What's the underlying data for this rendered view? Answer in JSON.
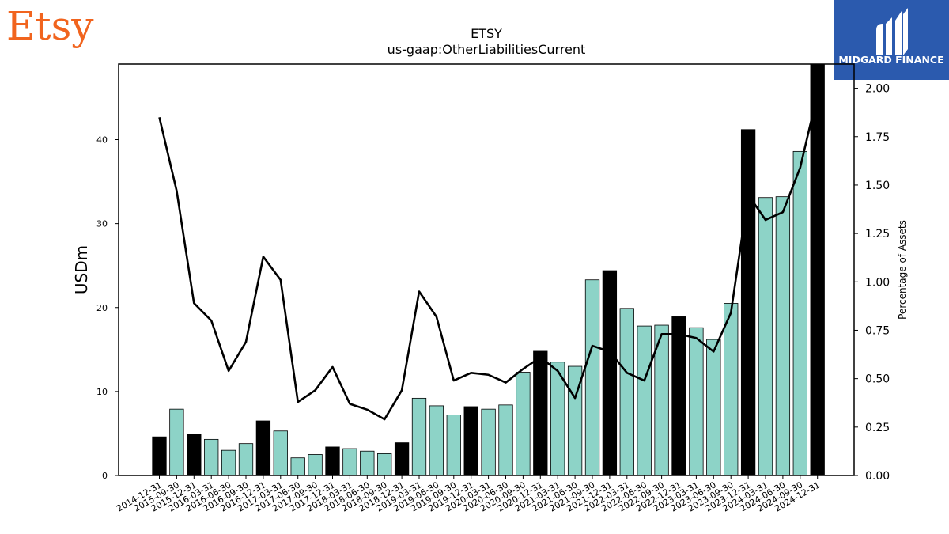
{
  "brand": {
    "left_logo_text": "Etsy",
    "left_logo_color": "#F1641E",
    "right_logo_text": "MIDGARD FINANCE",
    "right_logo_bg": "#2B5AAE"
  },
  "chart_data": {
    "type": "bar",
    "title": "ETSY",
    "subtitle": "us-gaap:OtherLiabilitiesCurrent",
    "ylabel": "USDm",
    "y2label": "Percentage of Assets",
    "ylim": [
      0,
      49
    ],
    "y2lim": [
      0,
      2.125
    ],
    "yticks": [
      0,
      10,
      20,
      30,
      40
    ],
    "y2ticks": [
      "0.00",
      "0.25",
      "0.50",
      "0.75",
      "1.00",
      "1.25",
      "1.50",
      "1.75",
      "2.00"
    ],
    "grid": false,
    "colors": {
      "annual_bar": "#000000",
      "quarter_bar": "#8DD3C7",
      "line": "#000000"
    },
    "categories": [
      "2014-12-31",
      "2015-09-30",
      "2015-12-31",
      "2016-03-31",
      "2016-06-30",
      "2016-09-30",
      "2016-12-31",
      "2017-03-31",
      "2017-06-30",
      "2017-09-30",
      "2017-12-31",
      "2018-03-31",
      "2018-06-30",
      "2018-09-30",
      "2018-12-31",
      "2019-03-31",
      "2019-06-30",
      "2019-09-30",
      "2019-12-31",
      "2020-03-31",
      "2020-06-30",
      "2020-09-30",
      "2020-12-31",
      "2021-03-31",
      "2021-06-30",
      "2021-09-30",
      "2021-12-31",
      "2022-03-31",
      "2022-06-30",
      "2022-09-30",
      "2022-12-31",
      "2023-03-31",
      "2023-06-30",
      "2023-09-30",
      "2023-12-31",
      "2024-03-31",
      "2024-06-30",
      "2024-09-30",
      "2024-12-31"
    ],
    "series": [
      {
        "kind": "bar",
        "values": [
          4.6,
          7.9,
          4.9,
          4.3,
          3.0,
          3.8,
          6.5,
          5.3,
          2.1,
          2.5,
          3.4,
          3.2,
          2.9,
          2.6,
          3.9,
          9.2,
          8.3,
          7.2,
          8.2,
          7.9,
          8.4,
          12.3,
          14.8,
          13.5,
          13.0,
          23.3,
          24.4,
          19.9,
          17.8,
          17.9,
          18.9,
          17.6,
          16.2,
          20.5,
          41.2,
          33.1,
          33.2,
          38.6,
          49.5
        ],
        "annual": [
          true,
          false,
          true,
          false,
          false,
          false,
          true,
          false,
          false,
          false,
          true,
          false,
          false,
          false,
          true,
          false,
          false,
          false,
          true,
          false,
          false,
          false,
          true,
          false,
          false,
          false,
          true,
          false,
          false,
          false,
          true,
          false,
          false,
          false,
          true,
          false,
          false,
          false,
          true
        ]
      },
      {
        "kind": "line",
        "axis": "right",
        "values": [
          1.85,
          1.47,
          0.89,
          0.8,
          0.54,
          0.69,
          1.13,
          1.01,
          0.38,
          0.44,
          0.56,
          0.37,
          0.34,
          0.29,
          0.44,
          0.95,
          0.82,
          0.49,
          0.53,
          0.52,
          0.48,
          0.55,
          0.61,
          0.54,
          0.4,
          0.67,
          0.64,
          0.53,
          0.49,
          0.73,
          0.73,
          0.71,
          0.64,
          0.84,
          1.45,
          1.32,
          1.36,
          1.59,
          1.97
        ]
      }
    ]
  }
}
